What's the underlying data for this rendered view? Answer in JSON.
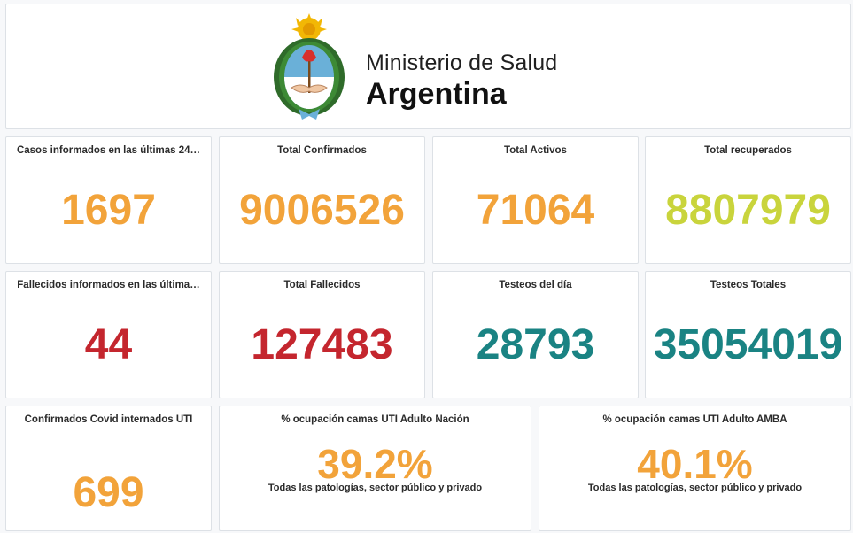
{
  "header": {
    "line1": "Ministerio de Salud",
    "line2": "Argentina",
    "emblem_icon": "argentina-coat-of-arms-icon"
  },
  "colors": {
    "orange": "#f2a33a",
    "green": "#c9d43c",
    "red": "#c4262e",
    "teal": "#1a8383"
  },
  "row1": [
    {
      "title": "Casos informados en las últimas 24…",
      "value": "1697"
    },
    {
      "title": "Total Confirmados",
      "value": "9006526"
    },
    {
      "title": "Total Activos",
      "value": "71064"
    },
    {
      "title": "Total recuperados",
      "value": "8807979"
    }
  ],
  "row2": [
    {
      "title": "Fallecidos informados en las última…",
      "value": "44"
    },
    {
      "title": "Total Fallecidos",
      "value": "127483"
    },
    {
      "title": "Testeos del día",
      "value": "28793"
    },
    {
      "title": "Testeos Totales",
      "value": "35054019"
    }
  ],
  "row3": [
    {
      "title": "Confirmados Covid internados UTI",
      "value": "699"
    },
    {
      "title": "% ocupación camas UTI Adulto Nación",
      "value": "39.2%",
      "note": "Todas las patologías, sector público y privado"
    },
    {
      "title": "% ocupación camas UTI Adulto AMBA",
      "value": "40.1%",
      "note": "Todas las patologías, sector público y privado"
    }
  ]
}
